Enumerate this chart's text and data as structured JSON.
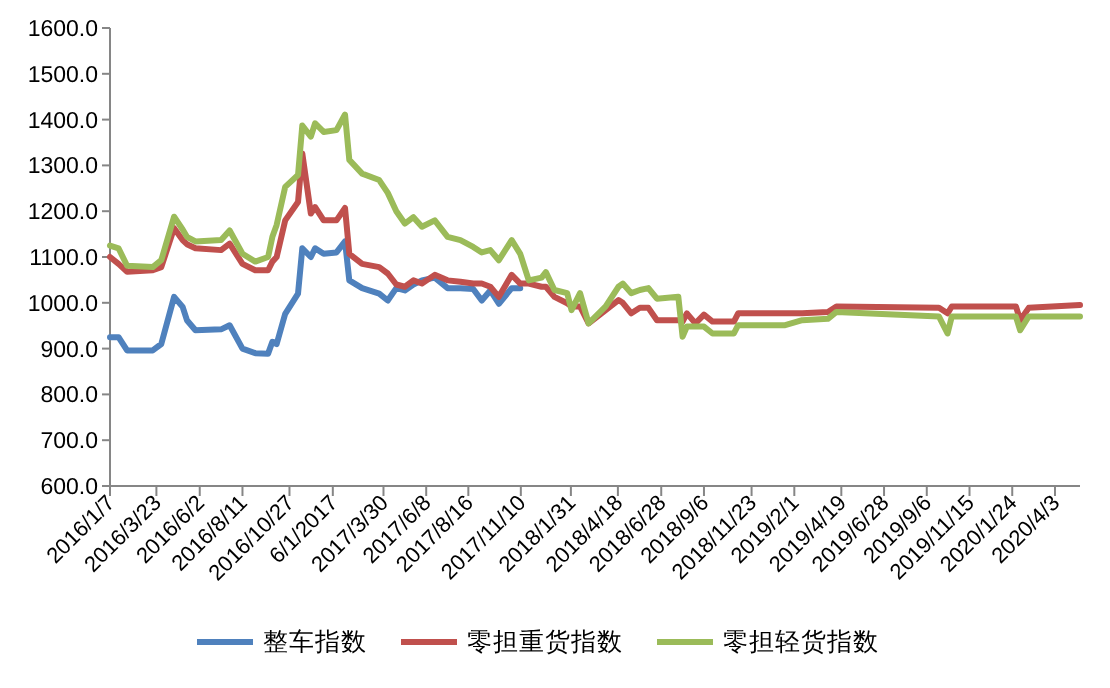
{
  "chart_data": {
    "type": "line",
    "legend": "bottom",
    "grid": false,
    "marker": "none",
    "line_style": "solid",
    "x": [
      "2016-01-07",
      "2016-01-21",
      "2016-02-04",
      "2016-03-17",
      "2016-03-31",
      "2016-04-21",
      "2016-05-05",
      "2016-05-12",
      "2016-05-26",
      "2016-07-07",
      "2016-07-21",
      "2016-08-11",
      "2016-09-01",
      "2016-09-22",
      "2016-09-29",
      "2016-10-06",
      "2016-10-20",
      "2016-11-10",
      "2016-11-17",
      "2016-12-01",
      "2016-12-08",
      "2016-12-22",
      "2017-01-12",
      "2017-01-26",
      "2017-02-02",
      "2017-02-23",
      "2017-03-23",
      "2017-04-06",
      "2017-04-20",
      "2017-05-04",
      "2017-05-18",
      "2017-06-01",
      "2017-06-22",
      "2017-07-13",
      "2017-08-03",
      "2017-08-24",
      "2017-09-07",
      "2017-09-21",
      "2017-10-05",
      "2017-10-26",
      "2017-11-09",
      "2017-11-23",
      "2017-12-14",
      "2017-12-21",
      "2018-01-04",
      "2018-01-25",
      "2018-02-01",
      "2018-02-15",
      "2018-03-01",
      "2018-03-29",
      "2018-04-19",
      "2018-04-26",
      "2018-05-10",
      "2018-05-24",
      "2018-06-07",
      "2018-06-21",
      "2018-07-26",
      "2018-08-02",
      "2018-08-09",
      "2018-08-23",
      "2018-09-06",
      "2018-09-20",
      "2018-10-25",
      "2018-11-01",
      "2019-01-17",
      "2019-02-14",
      "2019-03-28",
      "2019-04-11",
      "2019-09-26",
      "2019-10-10",
      "2019-10-17",
      "2020-01-30",
      "2020-02-06",
      "2020-02-20",
      "2020-05-14"
    ],
    "series": [
      {
        "name": "整车指数",
        "color": "#4f81bd",
        "values": [
          925,
          925,
          896,
          896,
          910,
          1013,
          991,
          962,
          940,
          942,
          951,
          900,
          890,
          889,
          915,
          910,
          976,
          1020,
          1119,
          1100,
          1119,
          1107,
          1110,
          1134,
          1049,
          1032,
          1020,
          1005,
          1032,
          1027,
          1040,
          1049,
          1055,
          1032,
          1032,
          1030,
          1005,
          1027,
          998,
          1032,
          1032,
          null,
          null,
          null,
          null,
          null,
          null,
          null,
          null,
          null,
          null,
          null,
          null,
          null,
          null,
          null,
          null,
          null,
          null,
          null,
          null,
          null,
          null,
          null,
          null,
          null,
          null,
          null,
          null,
          null,
          null,
          null,
          null,
          null,
          null
        ]
      },
      {
        "name": "零担重货指数",
        "color": "#c0504d",
        "values": [
          1100,
          1085,
          1068,
          1071,
          1078,
          1163,
          1137,
          1128,
          1119,
          1115,
          1129,
          1085,
          1071,
          1071,
          1090,
          1100,
          1180,
          1220,
          1326,
          1195,
          1209,
          1180,
          1180,
          1207,
          1107,
          1085,
          1078,
          1064,
          1040,
          1035,
          1049,
          1042,
          1061,
          1049,
          1046,
          1042,
          1042,
          1035,
          1013,
          1061,
          1042,
          1042,
          1035,
          1035,
          1013,
          999,
          992,
          992,
          955,
          984,
          1006,
          1000,
          977,
          989,
          989,
          962,
          962,
          959,
          977,
          955,
          974,
          959,
          959,
          977,
          977,
          977,
          980,
          992,
          989,
          977,
          992,
          992,
          962,
          989,
          995
        ]
      },
      {
        "name": "零担轻货指数",
        "color": "#9bbb59",
        "values": [
          1125,
          1119,
          1081,
          1078,
          1093,
          1188,
          1160,
          1144,
          1134,
          1137,
          1158,
          1107,
          1090,
          1100,
          1144,
          1170,
          1253,
          1279,
          1387,
          1363,
          1392,
          1373,
          1377,
          1411,
          1312,
          1282,
          1268,
          1240,
          1200,
          1173,
          1187,
          1166,
          1180,
          1144,
          1137,
          1122,
          1110,
          1115,
          1093,
          1137,
          1107,
          1049,
          1055,
          1067,
          1028,
          1021,
          984,
          1021,
          955,
          992,
          1035,
          1042,
          1021,
          1028,
          1032,
          1009,
          1013,
          926,
          948,
          948,
          948,
          933,
          933,
          951,
          951,
          962,
          965,
          980,
          970,
          933,
          970,
          970,
          940,
          970,
          970
        ]
      }
    ],
    "xlim": [
      "2016-01-07",
      "2020-05-14"
    ],
    "xticks": [
      {
        "value": "2016-01-07",
        "label": "2016/1/7"
      },
      {
        "value": "2016-03-23",
        "label": "2016/3/23"
      },
      {
        "value": "2016-06-02",
        "label": "2016/6/2"
      },
      {
        "value": "2016-08-11",
        "label": "2016/8/11"
      },
      {
        "value": "2016-10-27",
        "label": "2016/10/27"
      },
      {
        "value": "2017-01-06",
        "label": "6/1/2017"
      },
      {
        "value": "2017-03-30",
        "label": "2017/3/30"
      },
      {
        "value": "2017-06-08",
        "label": "2017/6/8"
      },
      {
        "value": "2017-08-16",
        "label": "2017/8/16"
      },
      {
        "value": "2017-11-10",
        "label": "2017/11/10"
      },
      {
        "value": "2018-01-31",
        "label": "2018/1/31"
      },
      {
        "value": "2018-04-18",
        "label": "2018/4/18"
      },
      {
        "value": "2018-06-28",
        "label": "2018/6/28"
      },
      {
        "value": "2018-09-06",
        "label": "2018/9/6"
      },
      {
        "value": "2018-11-23",
        "label": "2018/11/23"
      },
      {
        "value": "2019-02-01",
        "label": "2019/2/1"
      },
      {
        "value": "2019-04-19",
        "label": "2019/4/19"
      },
      {
        "value": "2019-06-28",
        "label": "2019/6/28"
      },
      {
        "value": "2019-09-06",
        "label": "2019/9/6"
      },
      {
        "value": "2019-11-15",
        "label": "2019/11/15"
      },
      {
        "value": "2020-01-24",
        "label": "2020/1/24"
      },
      {
        "value": "2020-04-03",
        "label": "2020/4/3"
      }
    ],
    "ylim": [
      600,
      1600
    ],
    "yticks": [
      {
        "value": 600,
        "label": "600.0"
      },
      {
        "value": 700,
        "label": "700.0"
      },
      {
        "value": 800,
        "label": "800.0"
      },
      {
        "value": 900,
        "label": "900.0"
      },
      {
        "value": 1000,
        "label": "1000.0"
      },
      {
        "value": 1100,
        "label": "1100.0"
      },
      {
        "value": 1200,
        "label": "1200.0"
      },
      {
        "value": 1300,
        "label": "1300.0"
      },
      {
        "value": 1400,
        "label": "1400.0"
      },
      {
        "value": 1500,
        "label": "1500.0"
      },
      {
        "value": 1600,
        "label": "1600.0"
      }
    ]
  }
}
